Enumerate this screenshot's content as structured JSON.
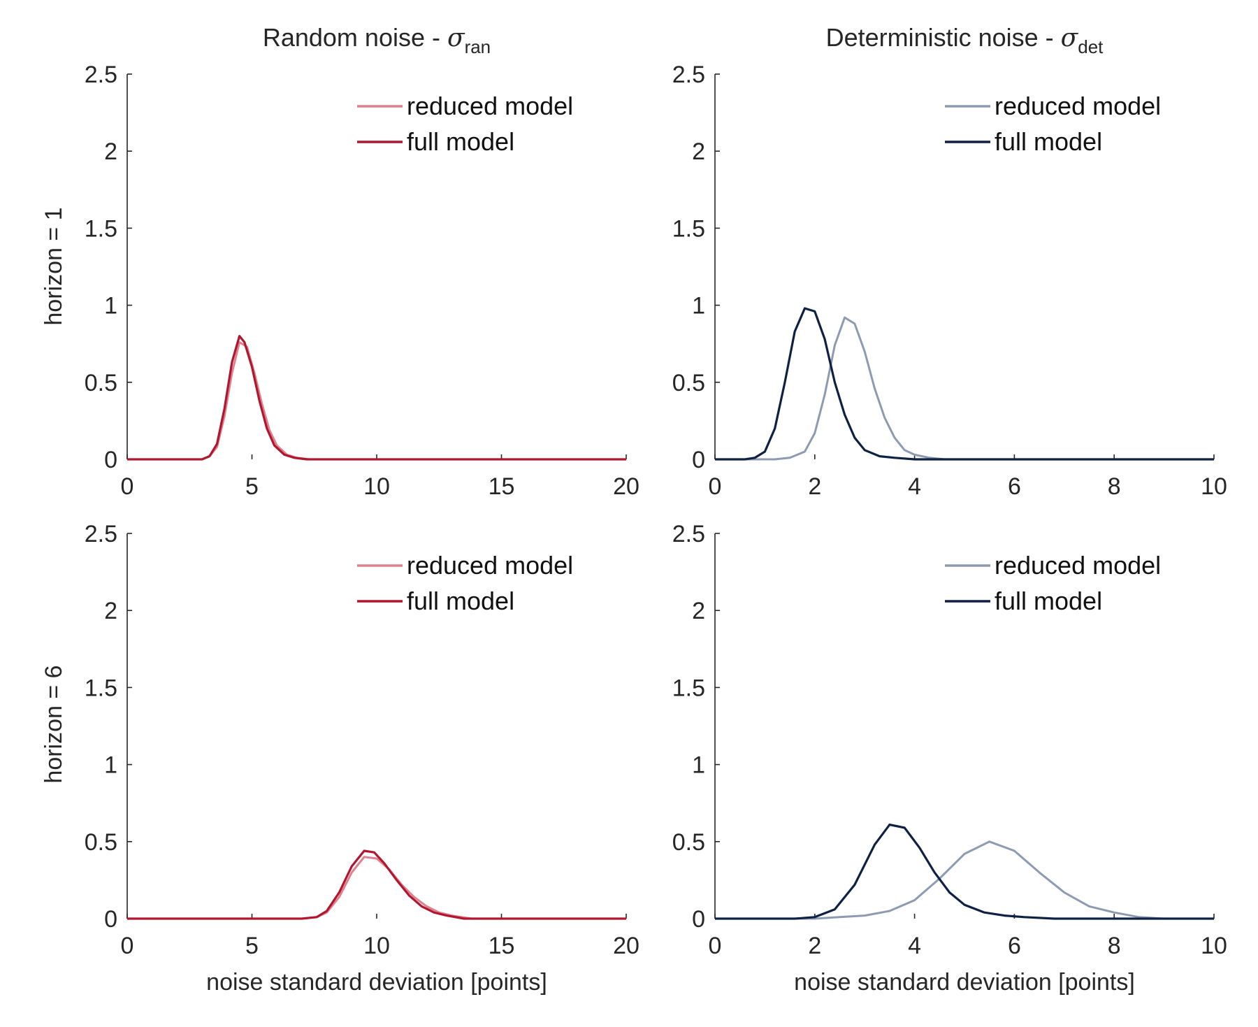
{
  "figure": {
    "row_labels": [
      "horizon = 1",
      "horizon = 6"
    ],
    "x_label": "noise standard deviation [points]"
  },
  "colors": {
    "random_reduced": "#e0808e",
    "random_full": "#b0172f",
    "det_reduced": "#8d9bb2",
    "det_full": "#0e2145"
  },
  "chart_data": [
    {
      "type": "line",
      "title": "Random noise - σ_ran",
      "title_main": "Random noise - ",
      "title_symbol": "σ",
      "title_sub": "ran",
      "row_label": "horizon = 1",
      "xlabel": "",
      "xlim": [
        0,
        20
      ],
      "ylim": [
        0,
        2.5
      ],
      "xticks": [
        0,
        5,
        10,
        15,
        20
      ],
      "yticks": [
        0,
        0.5,
        1,
        1.5,
        2,
        2.5
      ],
      "legend_position": "top-right",
      "series": [
        {
          "name": "reduced model",
          "color": "#e0808e",
          "x": [
            0,
            3.0,
            3.3,
            3.6,
            3.9,
            4.2,
            4.5,
            4.8,
            5.1,
            5.4,
            5.7,
            6.0,
            6.4,
            6.8,
            7.3,
            8,
            20
          ],
          "y": [
            0,
            0.0,
            0.02,
            0.08,
            0.28,
            0.56,
            0.76,
            0.73,
            0.56,
            0.36,
            0.19,
            0.09,
            0.03,
            0.01,
            0.0,
            0,
            0
          ]
        },
        {
          "name": "full model",
          "color": "#b0172f",
          "x": [
            0,
            3.0,
            3.3,
            3.6,
            3.9,
            4.2,
            4.5,
            4.7,
            5.0,
            5.3,
            5.6,
            5.9,
            6.3,
            6.7,
            7.2,
            8,
            20
          ],
          "y": [
            0,
            0.0,
            0.02,
            0.1,
            0.33,
            0.63,
            0.8,
            0.76,
            0.6,
            0.38,
            0.2,
            0.09,
            0.03,
            0.01,
            0.0,
            0,
            0
          ]
        }
      ]
    },
    {
      "type": "line",
      "title": "Deterministic noise - σ_det",
      "title_main": "Deterministic noise - ",
      "title_symbol": "σ",
      "title_sub": "det",
      "row_label": "horizon = 1",
      "xlabel": "",
      "xlim": [
        0,
        10
      ],
      "ylim": [
        0,
        2.5
      ],
      "xticks": [
        0,
        2,
        4,
        6,
        8,
        10
      ],
      "yticks": [
        0,
        0.5,
        1,
        1.5,
        2,
        2.5
      ],
      "legend_position": "top-right",
      "series": [
        {
          "name": "reduced model",
          "color": "#8d9bb2",
          "x": [
            0,
            1.2,
            1.5,
            1.8,
            2.0,
            2.2,
            2.4,
            2.6,
            2.8,
            3.0,
            3.2,
            3.4,
            3.6,
            3.8,
            4.0,
            4.3,
            4.6,
            10
          ],
          "y": [
            0,
            0.0,
            0.01,
            0.05,
            0.17,
            0.42,
            0.74,
            0.92,
            0.88,
            0.7,
            0.46,
            0.27,
            0.14,
            0.06,
            0.03,
            0.01,
            0.0,
            0
          ]
        },
        {
          "name": "full model",
          "color": "#0e2145",
          "x": [
            0,
            0.6,
            0.8,
            1.0,
            1.2,
            1.4,
            1.6,
            1.8,
            2.0,
            2.2,
            2.4,
            2.6,
            2.8,
            3.0,
            3.3,
            3.6,
            4.0,
            10
          ],
          "y": [
            0,
            0.0,
            0.01,
            0.05,
            0.2,
            0.5,
            0.83,
            0.98,
            0.96,
            0.78,
            0.5,
            0.29,
            0.14,
            0.06,
            0.02,
            0.01,
            0.0,
            0
          ]
        }
      ]
    },
    {
      "type": "line",
      "title": "",
      "row_label": "horizon = 6",
      "xlabel": "noise standard deviation [points]",
      "xlim": [
        0,
        20
      ],
      "ylim": [
        0,
        2.5
      ],
      "xticks": [
        0,
        5,
        10,
        15,
        20
      ],
      "yticks": [
        0,
        0.5,
        1,
        1.5,
        2,
        2.5
      ],
      "legend_position": "top-right",
      "series": [
        {
          "name": "reduced model",
          "color": "#e0808e",
          "x": [
            0,
            7.0,
            7.6,
            8.0,
            8.5,
            9.0,
            9.5,
            10.0,
            10.5,
            11.0,
            11.5,
            12.0,
            12.5,
            13.0,
            13.8,
            15,
            20
          ],
          "y": [
            0,
            0.0,
            0.01,
            0.04,
            0.14,
            0.3,
            0.4,
            0.39,
            0.32,
            0.22,
            0.14,
            0.08,
            0.04,
            0.02,
            0.0,
            0,
            0
          ]
        },
        {
          "name": "full model",
          "color": "#b0172f",
          "x": [
            0,
            7.0,
            7.6,
            8.0,
            8.5,
            9.0,
            9.5,
            9.9,
            10.3,
            10.8,
            11.3,
            11.8,
            12.3,
            12.8,
            13.5,
            15,
            20
          ],
          "y": [
            0,
            0.0,
            0.01,
            0.05,
            0.17,
            0.34,
            0.44,
            0.43,
            0.36,
            0.25,
            0.15,
            0.08,
            0.04,
            0.02,
            0.0,
            0,
            0
          ]
        }
      ]
    },
    {
      "type": "line",
      "title": "",
      "row_label": "horizon = 6",
      "xlabel": "noise standard deviation [points]",
      "xlim": [
        0,
        10
      ],
      "ylim": [
        0,
        2.5
      ],
      "xticks": [
        0,
        2,
        4,
        6,
        8,
        10
      ],
      "yticks": [
        0,
        0.5,
        1,
        1.5,
        2,
        2.5
      ],
      "legend_position": "top-right",
      "series": [
        {
          "name": "reduced model",
          "color": "#8d9bb2",
          "x": [
            0,
            2.0,
            2.5,
            3.0,
            3.5,
            4.0,
            4.5,
            5.0,
            5.5,
            6.0,
            6.5,
            7.0,
            7.5,
            8.0,
            8.5,
            9.0,
            10
          ],
          "y": [
            0,
            0.0,
            0.01,
            0.02,
            0.05,
            0.12,
            0.26,
            0.42,
            0.5,
            0.44,
            0.3,
            0.17,
            0.08,
            0.04,
            0.01,
            0.0,
            0
          ]
        },
        {
          "name": "full model",
          "color": "#0e2145",
          "x": [
            0,
            1.6,
            2.0,
            2.4,
            2.8,
            3.2,
            3.5,
            3.8,
            4.1,
            4.4,
            4.7,
            5.0,
            5.4,
            5.8,
            6.2,
            6.8,
            10
          ],
          "y": [
            0,
            0.0,
            0.01,
            0.06,
            0.22,
            0.48,
            0.61,
            0.59,
            0.46,
            0.3,
            0.17,
            0.09,
            0.04,
            0.02,
            0.01,
            0.0,
            0
          ]
        }
      ]
    }
  ]
}
